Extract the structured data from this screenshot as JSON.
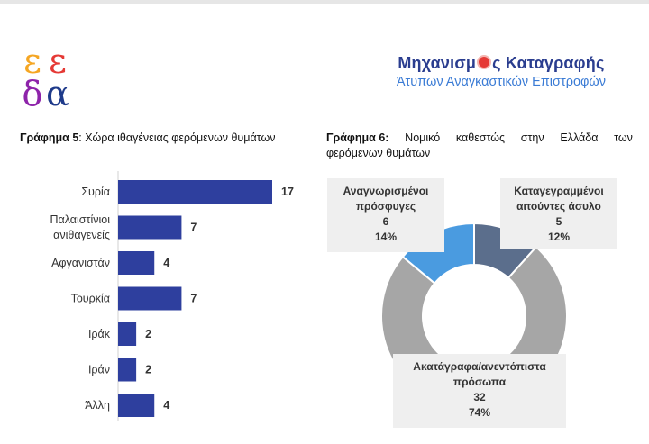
{
  "logo": {
    "letters": [
      "ε",
      "ε",
      "δ",
      "α"
    ],
    "colors": [
      "#f5a623",
      "#e53935",
      "#8e24aa",
      "#1e3a8a"
    ]
  },
  "brand": {
    "title_before": "Μηχανισμ",
    "title_after": "ς Καταγραφής",
    "subtitle": "Άτυπων Αναγκαστικών Επιστροφών"
  },
  "chart5": {
    "title_bold": "Γράφημα 5",
    "title_rest": ": Χώρα ιθαγένειας φερόμενων θυμάτων"
  },
  "chart6": {
    "title_bold": "Γράφημα 6",
    "title_line1_words": [
      "Νομικό",
      "καθεστώς",
      "στην",
      "Ελλάδα",
      "των"
    ],
    "title_line2": "φερόμενων θυμάτων"
  },
  "chart_data": [
    {
      "type": "bar",
      "orientation": "horizontal",
      "title": "Γράφημα 5: Χώρα ιθαγένειας φερόμενων θυμάτων",
      "categories": [
        [
          "Συρία"
        ],
        [
          "Παλαιστίνιοι",
          "ανιθαγενείς"
        ],
        [
          "Αφγανιστάν"
        ],
        [
          "Τουρκία"
        ],
        [
          "Ιράκ"
        ],
        [
          "Ιράν"
        ],
        [
          "Άλλη"
        ]
      ],
      "values": [
        17,
        7,
        4,
        7,
        2,
        2,
        4
      ],
      "xlim": [
        0,
        17
      ],
      "color": "#2e3f9e",
      "grid": false
    },
    {
      "type": "pie",
      "variant": "donut",
      "title": "Γράφημα 6: Νομικό καθεστώς στην Ελλάδα των φερόμενων θυμάτων",
      "slices": [
        {
          "label": "Καταγεγραμμένοι αιτούντες άσυλο",
          "label_lines": [
            "Καταγεγραμμένοι",
            "αιτούντες άσυλο"
          ],
          "value": 5,
          "percent": "12%",
          "color": "#5b6e8c"
        },
        {
          "label": "Ακατάγραφα/ανεντόπιστα πρόσωπα",
          "label_lines": [
            "Ακατάγραφα/ανεντόπιστα",
            "πρόσωπα"
          ],
          "value": 32,
          "percent": "74%",
          "color": "#a6a6a6"
        },
        {
          "label": "Αναγνωρισμένοι πρόσφυγες",
          "label_lines": [
            "Αναγνωρισμένοι",
            "πρόσφυγες"
          ],
          "value": 6,
          "percent": "14%",
          "color": "#4a9be0"
        }
      ]
    }
  ]
}
